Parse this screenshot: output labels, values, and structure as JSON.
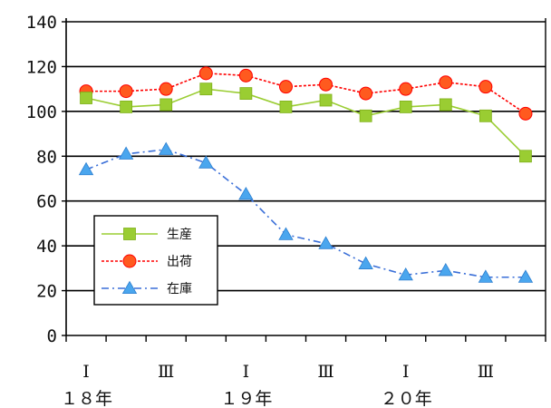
{
  "chart_data": {
    "type": "line",
    "title": "",
    "xlabel": "",
    "ylabel": "",
    "ylim": [
      0,
      140
    ],
    "yticks": [
      "0",
      "20",
      "40",
      "60",
      "80",
      "100",
      "120",
      "140"
    ],
    "grid": "horizontal",
    "legend_position": "lower-left",
    "categories": [
      "Ⅰ",
      "",
      "Ⅲ",
      "",
      "Ⅰ",
      "",
      "Ⅲ",
      "",
      "Ⅰ",
      "",
      "Ⅲ",
      ""
    ],
    "year_labels": [
      {
        "label": "１８年",
        "at_index": 0
      },
      {
        "label": "１９年",
        "at_index": 4
      },
      {
        "label": "２０年",
        "at_index": 8
      }
    ],
    "series": [
      {
        "name": "生産",
        "color": "#9acd32",
        "marker": "square",
        "line": "solid",
        "values": [
          106,
          102,
          103,
          110,
          108,
          102,
          105,
          98,
          102,
          103,
          98,
          80
        ]
      },
      {
        "name": "出荷",
        "color": "#ff0000",
        "marker": "circle",
        "line": "dotted",
        "values": [
          109,
          109,
          110,
          117,
          116,
          111,
          112,
          108,
          110,
          113,
          111,
          99
        ]
      },
      {
        "name": "在庫",
        "color": "#3a6fd8",
        "marker": "triangle",
        "line": "dashdot",
        "values": [
          74,
          81,
          83,
          77,
          63,
          45,
          41,
          32,
          27,
          29,
          26,
          26
        ]
      }
    ]
  }
}
